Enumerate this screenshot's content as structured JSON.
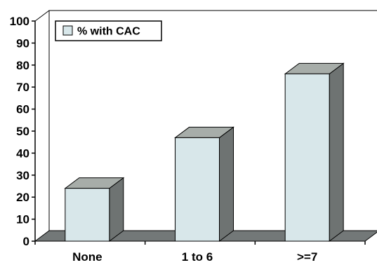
{
  "chart_data": {
    "type": "bar",
    "categories": [
      "None",
      "1 to 6",
      ">=7"
    ],
    "series": [
      {
        "name": "% with CAC",
        "values": [
          24,
          47,
          76
        ]
      }
    ],
    "ylim": [
      0,
      100
    ],
    "yticks": [
      "0",
      "10",
      "20",
      "30",
      "40",
      "50",
      "60",
      "70",
      "80",
      "90",
      "100"
    ],
    "legend_position": "top-left",
    "grid": false,
    "three_d": true,
    "colors": {
      "bar_front": "#d8e7ea",
      "bar_side": "#6e7372",
      "bar_top": "#a7ada9",
      "floor": "#737878"
    }
  }
}
